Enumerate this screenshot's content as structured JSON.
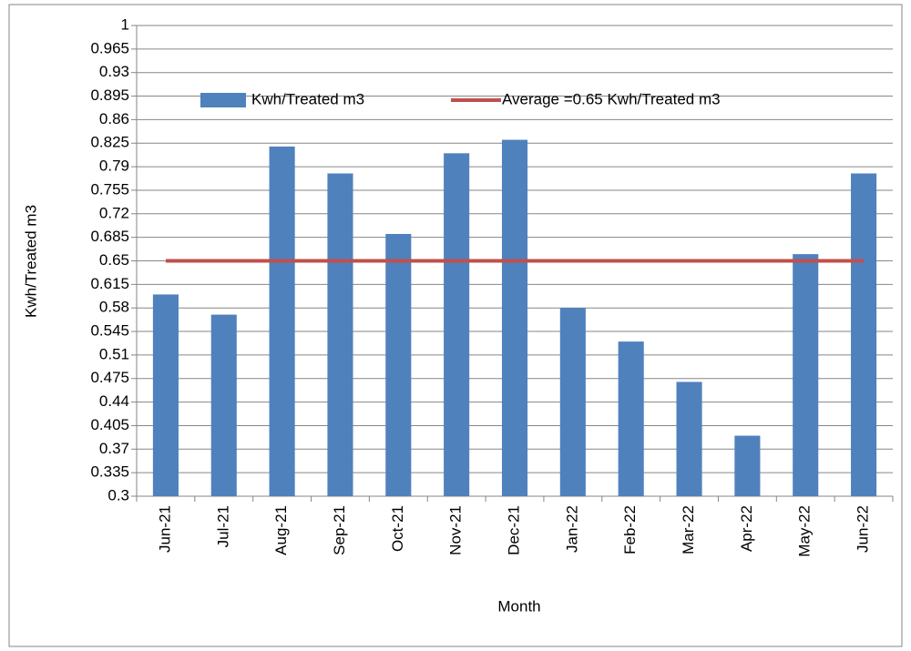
{
  "chart_data": {
    "type": "bar_line",
    "x_label": "Month",
    "y_label": "Kwh/Treated m3",
    "categories": [
      "Jun-21",
      "Jul-21",
      "Aug-21",
      "Sep-21",
      "Oct-21",
      "Nov-21",
      "Dec-21",
      "Jan-22",
      "Feb-22",
      "Mar-22",
      "Apr-22",
      "May-22",
      "Jun-22"
    ],
    "series": [
      {
        "name": "Kwh/Treated m3",
        "type": "bar",
        "color": "#4f81bd",
        "values": [
          0.6,
          0.57,
          0.82,
          0.78,
          0.69,
          0.81,
          0.83,
          0.58,
          0.53,
          0.47,
          0.39,
          0.66,
          0.78
        ]
      },
      {
        "name": "Average =0.65 Kwh/Treated m3",
        "type": "line",
        "color": "#c0504d",
        "values": [
          0.65,
          0.65,
          0.65,
          0.65,
          0.65,
          0.65,
          0.65,
          0.65,
          0.65,
          0.65,
          0.65,
          0.65,
          0.65
        ]
      }
    ],
    "ylim": [
      0.3,
      1
    ],
    "yticks": [
      0.3,
      0.335,
      0.37,
      0.405,
      0.44,
      0.475,
      0.51,
      0.545,
      0.58,
      0.615,
      0.65,
      0.685,
      0.72,
      0.755,
      0.79,
      0.825,
      0.86,
      0.895,
      0.93,
      0.965,
      1
    ],
    "grid": true,
    "legend": "top"
  }
}
